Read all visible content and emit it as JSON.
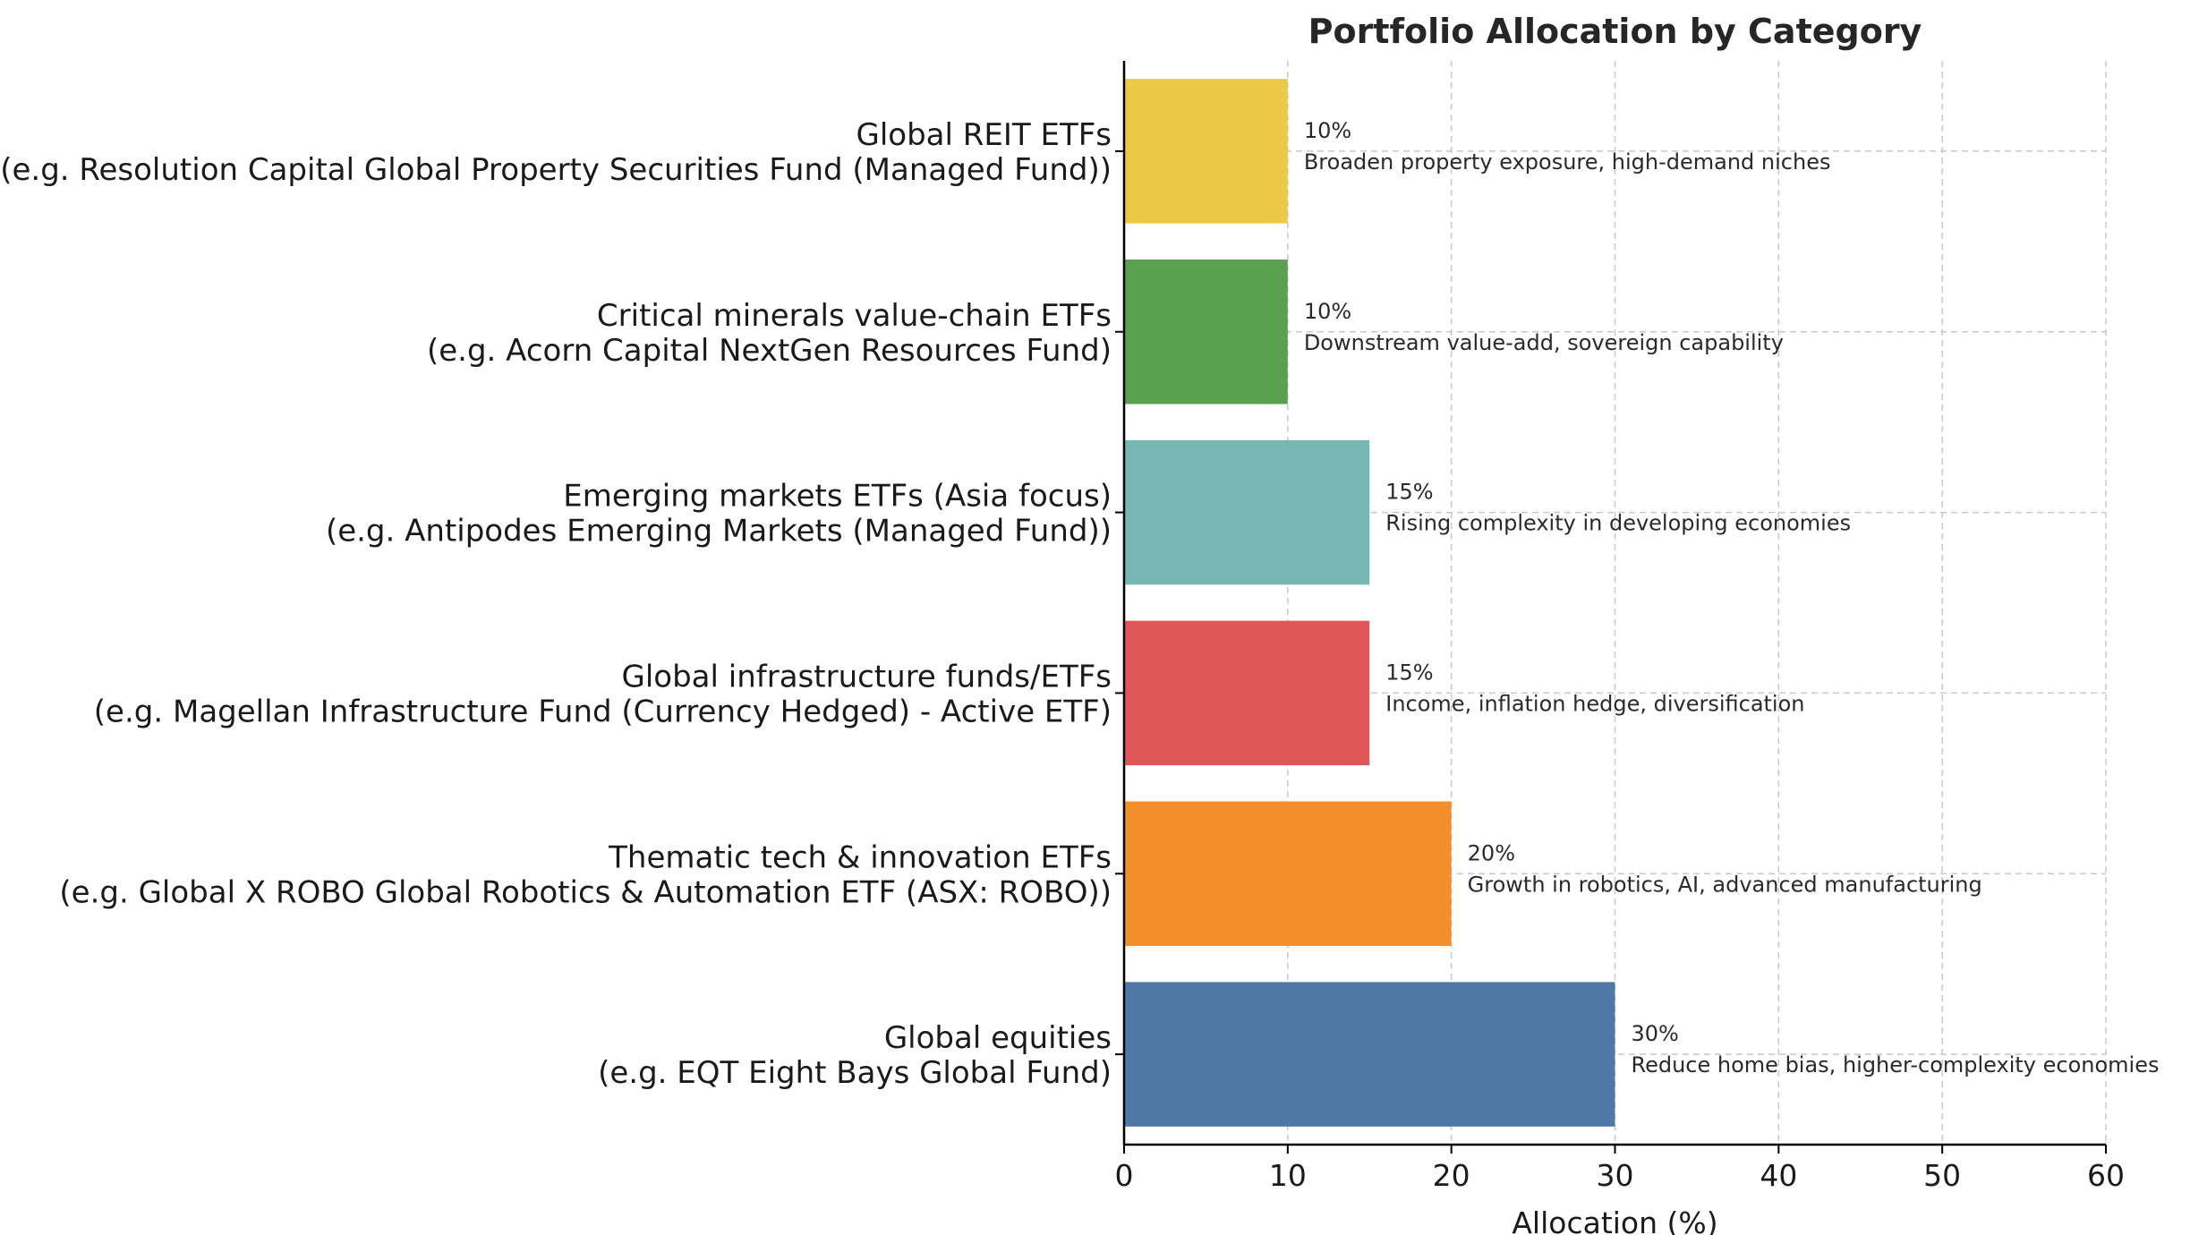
{
  "chart_data": {
    "type": "bar",
    "orientation": "horizontal",
    "title": "Portfolio Allocation by Category",
    "xlabel": "Allocation (%)",
    "ylabel": "",
    "xlim": [
      0,
      60
    ],
    "xticks": [
      0,
      10,
      20,
      30,
      40,
      50,
      60
    ],
    "grid": true,
    "categories": [
      {
        "line1": "Global equities",
        "line2": "(e.g. EQT Eight Bays Global Fund)"
      },
      {
        "line1": "Thematic tech & innovation ETFs",
        "line2": "(e.g. Global X ROBO Global Robotics & Automation ETF (ASX: ROBO))"
      },
      {
        "line1": "Global infrastructure funds/ETFs",
        "line2": "(e.g. Magellan Infrastructure Fund (Currency Hedged) - Active ETF)"
      },
      {
        "line1": "Emerging markets ETFs (Asia focus)",
        "line2": "(e.g. Antipodes Emerging Markets (Managed Fund))"
      },
      {
        "line1": "Critical minerals value-chain ETFs",
        "line2": "(e.g. Acorn Capital NextGen Resources Fund)"
      },
      {
        "line1": "Global REIT ETFs",
        "line2": "(e.g. Resolution Capital Global Property Securities Fund (Managed Fund))"
      }
    ],
    "values": [
      30,
      20,
      15,
      15,
      10,
      10
    ],
    "value_labels": [
      "30%",
      "20%",
      "15%",
      "15%",
      "10%",
      "10%"
    ],
    "annotations": [
      "Reduce home bias, higher-complexity economies",
      "Growth in robotics, AI, advanced manufacturing",
      "Income, inflation hedge, diversification",
      "Rising complexity in developing economies",
      "Downstream value-add, sovereign capability",
      "Broaden property exposure, high-demand niches"
    ],
    "colors": [
      "#4e79a7",
      "#f28e2b",
      "#e15759",
      "#76b7b2",
      "#59a14f",
      "#edc948"
    ]
  }
}
